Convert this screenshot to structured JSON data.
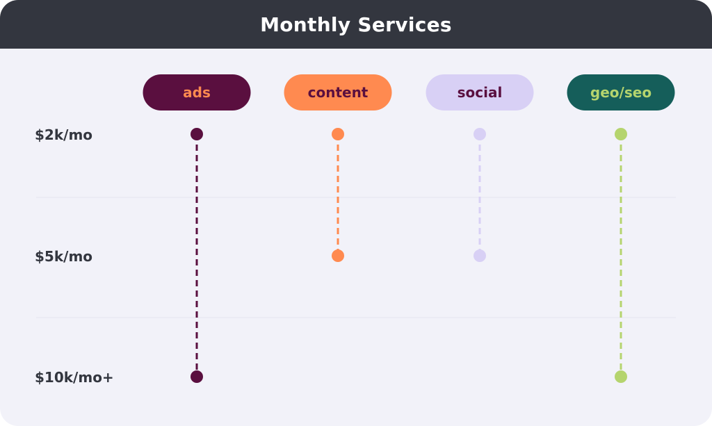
{
  "header": {
    "title": "Monthly Services"
  },
  "colors": {
    "ads_bg": "#5a0f3f",
    "ads_text": "#ff8a50",
    "content_bg": "#ff8a50",
    "content_text": "#5a0f3f",
    "social_bg": "#d8d0f5",
    "social_text": "#5a0f3f",
    "geo_bg": "#155e5a",
    "geo_text": "#b5d46e",
    "gridline": "#e4e4ee",
    "label": "#33363f"
  },
  "chart_data": {
    "type": "range",
    "title": "Monthly Services",
    "categories": [
      "ads",
      "content",
      "social",
      "geo/seo"
    ],
    "levels": [
      "$2k/mo",
      "$5k/mo",
      "$10k/mo+"
    ],
    "series": [
      {
        "category": "ads",
        "min": "$2k/mo",
        "max": "$10k/mo+",
        "color": "#5a0f3f"
      },
      {
        "category": "content",
        "min": "$2k/mo",
        "max": "$5k/mo",
        "color": "#ff8a50"
      },
      {
        "category": "social",
        "min": "$2k/mo",
        "max": "$5k/mo",
        "color": "#d8d0f5"
      },
      {
        "category": "geo/seo",
        "min": "$2k/mo",
        "max": "$10k/mo+",
        "color": "#b5d46e"
      }
    ]
  }
}
